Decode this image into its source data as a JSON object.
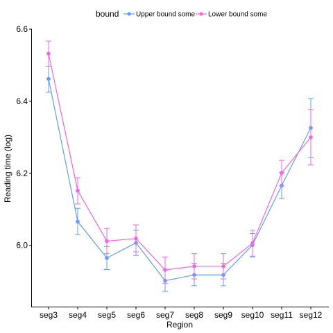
{
  "chart_data": {
    "type": "line",
    "xlabel": "Region",
    "ylabel": "Reading time (log)",
    "ylim": [
      5.83,
      6.6
    ],
    "yticks": [
      "6.0",
      "6.2",
      "6.4",
      "6.6"
    ],
    "categories": [
      "seg3",
      "seg4",
      "seg5",
      "seg6",
      "seg7",
      "seg8",
      "seg9",
      "seg10",
      "seg11",
      "seg12"
    ],
    "legend": {
      "title": "bound",
      "position": "top"
    },
    "grid": false,
    "error_bars": true,
    "series": [
      {
        "name": "Upper bound some",
        "color": "#619CFF",
        "values": [
          6.462,
          6.066,
          5.965,
          6.007,
          5.902,
          5.918,
          5.918,
          6.001,
          6.166,
          6.326
        ],
        "lower": [
          6.425,
          6.03,
          5.933,
          5.972,
          5.872,
          5.888,
          5.888,
          5.968,
          6.13,
          6.243
        ],
        "upper": [
          6.497,
          6.103,
          5.997,
          6.042,
          5.932,
          5.95,
          5.95,
          6.033,
          6.203,
          6.408
        ]
      },
      {
        "name": "Lower bound some",
        "color": "#F564E3",
        "values": [
          6.532,
          6.152,
          6.012,
          6.019,
          5.932,
          5.942,
          5.942,
          6.006,
          6.201,
          6.3
        ],
        "lower": [
          6.497,
          6.115,
          5.977,
          5.982,
          5.895,
          5.907,
          5.907,
          5.97,
          6.165,
          6.223
        ],
        "upper": [
          6.567,
          6.188,
          6.047,
          6.057,
          5.968,
          5.977,
          5.977,
          6.042,
          6.236,
          6.377
        ]
      }
    ]
  }
}
